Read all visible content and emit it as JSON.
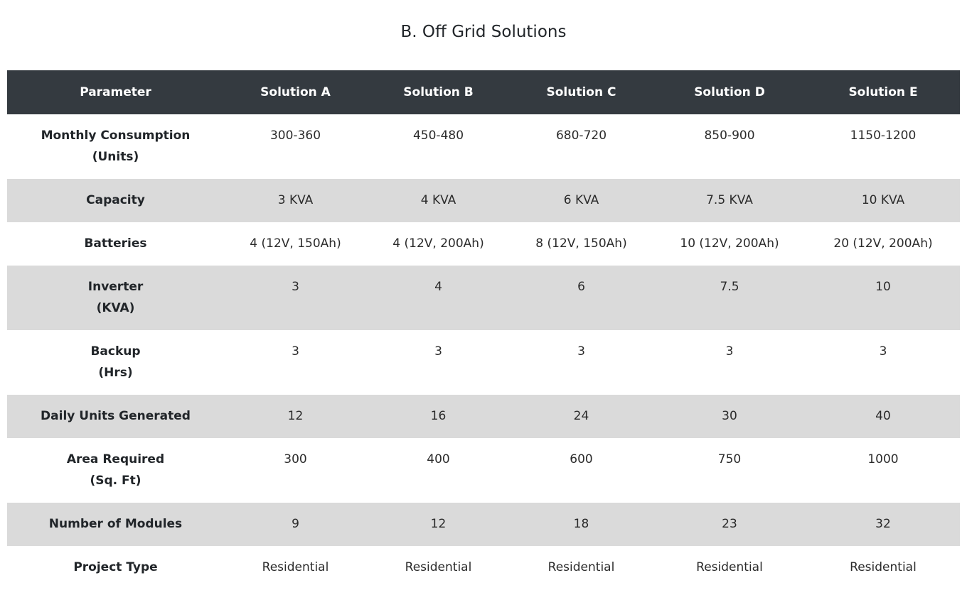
{
  "page": {
    "title": "B. Off Grid Solutions"
  },
  "table": {
    "headers": [
      "Parameter",
      "Solution A",
      "Solution B",
      "Solution C",
      "Solution D",
      "Solution E"
    ],
    "rows": [
      {
        "param_line1": "Monthly Consumption",
        "param_line2": "(Units)",
        "values": [
          "300-360",
          "450-480",
          "680-720",
          "850-900",
          "1150-1200"
        ]
      },
      {
        "param_line1": "Capacity",
        "param_line2": "",
        "values": [
          "3 KVA",
          "4 KVA",
          "6 KVA",
          "7.5 KVA",
          "10 KVA"
        ]
      },
      {
        "param_line1": "Batteries",
        "param_line2": "",
        "values": [
          "4 (12V, 150Ah)",
          "4 (12V, 200Ah)",
          "8 (12V, 150Ah)",
          "10 (12V, 200Ah)",
          "20 (12V, 200Ah)"
        ]
      },
      {
        "param_line1": "Inverter",
        "param_line2": "(KVA)",
        "values": [
          "3",
          "4",
          "6",
          "7.5",
          "10"
        ]
      },
      {
        "param_line1": "Backup",
        "param_line2": "(Hrs)",
        "values": [
          "3",
          "3",
          "3",
          "3",
          "3"
        ]
      },
      {
        "param_line1": "Daily Units Generated",
        "param_line2": "",
        "values": [
          "12",
          "16",
          "24",
          "30",
          "40"
        ]
      },
      {
        "param_line1": "Area Required",
        "param_line2": "(Sq. Ft)",
        "values": [
          "300",
          "400",
          "600",
          "750",
          "1000"
        ]
      },
      {
        "param_line1": "Number of Modules",
        "param_line2": "",
        "values": [
          "9",
          "12",
          "18",
          "23",
          "32"
        ]
      },
      {
        "param_line1": "Project Type",
        "param_line2": "",
        "values": [
          "Residential",
          "Residential",
          "Residential",
          "Residential",
          "Residential"
        ]
      }
    ]
  },
  "colors": {
    "header_bg": "#343a40",
    "header_text": "#ffffff",
    "shaded_row": "#dadada",
    "text": "#212529"
  }
}
